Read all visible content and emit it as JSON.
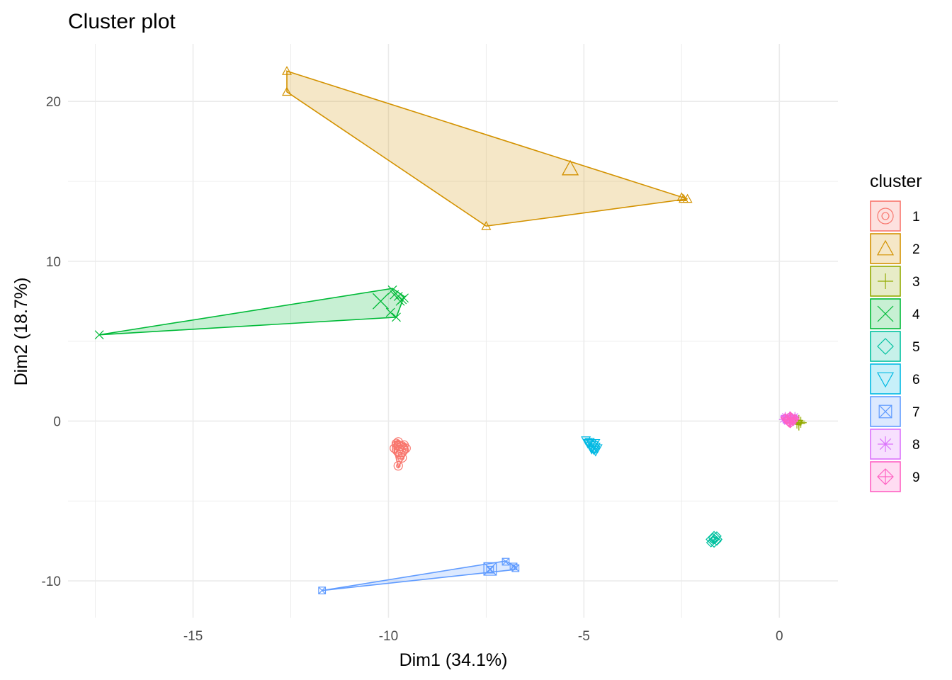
{
  "chart_data": {
    "type": "scatter",
    "title": "Cluster plot",
    "xlabel": "Dim1 (34.1%)",
    "ylabel": "Dim2 (18.7%)",
    "xlim": [
      -18.2,
      1.5
    ],
    "ylim": [
      -12.3,
      23.6
    ],
    "x_ticks": [
      -15,
      -10,
      -5,
      0
    ],
    "y_ticks": [
      -10,
      0,
      10,
      20
    ],
    "grid": true,
    "legend": {
      "title": "cluster",
      "position": "right"
    },
    "series": [
      {
        "name": "1",
        "color": "#F8766D",
        "shape": "circle",
        "points": [
          [
            -9.75,
            -1.3
          ],
          [
            -9.8,
            -1.5
          ],
          [
            -9.7,
            -1.6
          ],
          [
            -9.85,
            -1.7
          ],
          [
            -9.6,
            -1.8
          ],
          [
            -9.75,
            -1.9
          ],
          [
            -9.55,
            -1.7
          ],
          [
            -9.7,
            -2.1
          ],
          [
            -9.65,
            -2.3
          ],
          [
            -9.75,
            -2.8
          ],
          [
            -9.8,
            -1.4
          ],
          [
            -9.6,
            -1.5
          ]
        ],
        "hull": [
          [
            -9.75,
            -1.2
          ],
          [
            -9.55,
            -1.5
          ],
          [
            -9.5,
            -1.8
          ],
          [
            -9.75,
            -2.9
          ],
          [
            -9.85,
            -1.8
          ],
          [
            -9.85,
            -1.3
          ]
        ],
        "center": [
          -9.7,
          -1.75
        ]
      },
      {
        "name": "2",
        "color": "#D39200",
        "shape": "triangle",
        "points": [
          [
            -12.6,
            21.9
          ],
          [
            -12.6,
            20.6
          ],
          [
            -7.5,
            12.2
          ],
          [
            -2.5,
            14.0
          ],
          [
            -2.45,
            13.9
          ],
          [
            -2.35,
            13.9
          ]
        ],
        "hull": [
          [
            -12.6,
            21.9
          ],
          [
            -2.35,
            13.9
          ],
          [
            -7.5,
            12.2
          ],
          [
            -12.6,
            20.6
          ]
        ],
        "center": [
          -5.35,
          15.8
        ]
      },
      {
        "name": "3",
        "color": "#93AA00",
        "shape": "plus",
        "points": [
          [
            0.5,
            -0.1
          ],
          [
            0.55,
            0.0
          ],
          [
            0.45,
            -0.2
          ],
          [
            0.5,
            0.05
          ],
          [
            0.55,
            -0.15
          ]
        ],
        "hull": [
          [
            0.45,
            0.1
          ],
          [
            0.58,
            0.0
          ],
          [
            0.55,
            -0.25
          ],
          [
            0.42,
            -0.2
          ]
        ],
        "center": [
          0.5,
          -0.1
        ]
      },
      {
        "name": "4",
        "color": "#00BA38",
        "shape": "cross",
        "points": [
          [
            -17.4,
            5.4
          ],
          [
            -9.9,
            8.2
          ],
          [
            -9.75,
            7.8
          ],
          [
            -9.6,
            7.7
          ],
          [
            -9.7,
            7.5
          ],
          [
            -9.85,
            7.9
          ],
          [
            -9.8,
            6.5
          ],
          [
            -9.65,
            7.6
          ],
          [
            -9.95,
            6.8
          ]
        ],
        "hull": [
          [
            -17.4,
            5.4
          ],
          [
            -9.9,
            8.3
          ],
          [
            -9.6,
            7.8
          ],
          [
            -9.8,
            6.5
          ]
        ],
        "center": [
          -10.2,
          7.5
        ]
      },
      {
        "name": "5",
        "color": "#00C19F",
        "shape": "diamond",
        "points": [
          [
            -1.7,
            -7.3
          ],
          [
            -1.65,
            -7.4
          ],
          [
            -1.6,
            -7.5
          ],
          [
            -1.75,
            -7.6
          ],
          [
            -1.6,
            -7.2
          ]
        ],
        "hull": [
          [
            -1.7,
            -7.2
          ],
          [
            -1.55,
            -7.4
          ],
          [
            -1.7,
            -7.65
          ],
          [
            -1.8,
            -7.45
          ]
        ],
        "center": [
          -1.67,
          -7.4
        ]
      },
      {
        "name": "6",
        "color": "#00B9E3",
        "shape": "triangle-down",
        "points": [
          [
            -4.95,
            -1.2
          ],
          [
            -4.85,
            -1.3
          ],
          [
            -4.8,
            -1.4
          ],
          [
            -4.75,
            -1.5
          ],
          [
            -4.7,
            -1.6
          ],
          [
            -4.8,
            -1.7
          ],
          [
            -4.75,
            -1.8
          ],
          [
            -4.7,
            -1.9
          ],
          [
            -4.9,
            -1.4
          ],
          [
            -4.65,
            -1.7
          ]
        ],
        "hull": [
          [
            -5.0,
            -1.15
          ],
          [
            -4.8,
            -1.15
          ],
          [
            -4.6,
            -1.6
          ],
          [
            -4.7,
            -2.0
          ],
          [
            -4.85,
            -1.8
          ]
        ],
        "center": [
          -4.8,
          -1.55
        ]
      },
      {
        "name": "7",
        "color": "#619CFF",
        "shape": "square-cross",
        "points": [
          [
            -11.7,
            -10.6
          ],
          [
            -7.4,
            -9.3
          ],
          [
            -7.0,
            -8.8
          ],
          [
            -6.8,
            -9.1
          ],
          [
            -6.75,
            -9.2
          ]
        ],
        "hull": [
          [
            -11.7,
            -10.6
          ],
          [
            -7.0,
            -8.75
          ],
          [
            -6.75,
            -9.1
          ],
          [
            -6.8,
            -9.3
          ]
        ],
        "center": [
          -7.4,
          -9.25
        ]
      },
      {
        "name": "8",
        "color": "#DB72FB",
        "shape": "asterisk",
        "points": [
          [
            0.15,
            0.3
          ],
          [
            0.25,
            0.2
          ],
          [
            0.35,
            0.1
          ],
          [
            0.2,
            0.0
          ],
          [
            0.4,
            0.3
          ],
          [
            0.3,
            -0.1
          ],
          [
            0.1,
            0.1
          ]
        ],
        "hull": [
          [
            0.05,
            0.35
          ],
          [
            0.45,
            0.35
          ],
          [
            0.45,
            -0.15
          ],
          [
            0.1,
            -0.1
          ]
        ],
        "center": [
          0.27,
          0.12
        ]
      },
      {
        "name": "9",
        "color": "#FF61C3",
        "shape": "diamond-plus",
        "points": [
          [
            0.2,
            0.1
          ],
          [
            0.3,
            0.2
          ],
          [
            0.35,
            0.0
          ],
          [
            0.25,
            -0.1
          ],
          [
            0.4,
            0.15
          ],
          [
            0.15,
            0.2
          ]
        ],
        "hull": [
          [
            0.1,
            0.25
          ],
          [
            0.45,
            0.25
          ],
          [
            0.45,
            -0.15
          ],
          [
            0.15,
            -0.15
          ]
        ],
        "center": [
          0.28,
          0.08
        ]
      }
    ]
  }
}
